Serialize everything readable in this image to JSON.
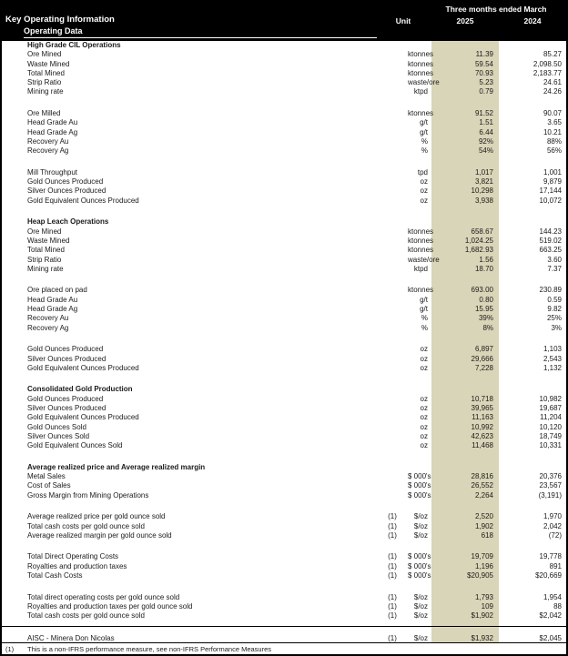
{
  "header": {
    "title": "Key Operating Information",
    "subtitle": "Operating Data",
    "period_label": "Three months ended March",
    "unit_label": "Unit",
    "col_2025": "2025",
    "col_2024": "2024"
  },
  "colors": {
    "header_bg": "#000000",
    "header_text": "#ffffff",
    "highlight_column_bg": "#d9d5b8",
    "body_text": "#1a1a1a"
  },
  "sections": [
    {
      "title": "High Grade CIL Operations",
      "groups": [
        {
          "rows": [
            {
              "label": "Ore Mined",
              "unit": "ktonnes",
              "y2025": "11.39",
              "y2024": "85.27"
            },
            {
              "label": "Waste Mined",
              "unit": "ktonnes",
              "y2025": "59.54",
              "y2024": "2,098.50"
            },
            {
              "label": "Total Mined",
              "unit": "ktonnes",
              "y2025": "70.93",
              "y2024": "2,183.77"
            },
            {
              "label": "Strip Ratio",
              "unit": "waste/ore",
              "y2025": "5.23",
              "y2024": "24.61"
            },
            {
              "label": "Mining rate",
              "unit": "ktpd",
              "y2025": "0.79",
              "y2024": "24.26"
            }
          ]
        },
        {
          "rows": [
            {
              "label": "Ore Milled",
              "unit": "ktonnes",
              "y2025": "91.52",
              "y2024": "90.07"
            },
            {
              "label": "Head Grade Au",
              "unit": "g/t",
              "y2025": "1.51",
              "y2024": "3.65"
            },
            {
              "label": "Head Grade Ag",
              "unit": "g/t",
              "y2025": "6.44",
              "y2024": "10.21"
            },
            {
              "label": "Recovery Au",
              "unit": "%",
              "y2025": "92%",
              "y2024": "88%"
            },
            {
              "label": "Recovery Ag",
              "unit": "%",
              "y2025": "54%",
              "y2024": "56%"
            }
          ]
        },
        {
          "rows": [
            {
              "label": "Mill Throughput",
              "unit": "tpd",
              "y2025": "1,017",
              "y2024": "1,001"
            },
            {
              "label": "Gold Ounces Produced",
              "unit": "oz",
              "y2025": "3,821",
              "y2024": "9,879"
            },
            {
              "label": "Silver Ounces Produced",
              "unit": "oz",
              "y2025": "10,298",
              "y2024": "17,144"
            },
            {
              "label": "Gold Equivalent Ounces Produced",
              "unit": "oz",
              "y2025": "3,938",
              "y2024": "10,072"
            }
          ]
        }
      ]
    },
    {
      "title": "Heap Leach Operations",
      "groups": [
        {
          "rows": [
            {
              "label": "Ore Mined",
              "unit": "ktonnes",
              "y2025": "658.67",
              "y2024": "144.23"
            },
            {
              "label": "Waste Mined",
              "unit": "ktonnes",
              "y2025": "1,024.25",
              "y2024": "519.02"
            },
            {
              "label": "Total Mined",
              "unit": "ktonnes",
              "y2025": "1,682.93",
              "y2024": "663.25"
            },
            {
              "label": "Strip Ratio",
              "unit": "waste/ore",
              "y2025": "1.56",
              "y2024": "3.60"
            },
            {
              "label": "Mining rate",
              "unit": "ktpd",
              "y2025": "18.70",
              "y2024": "7.37"
            }
          ]
        },
        {
          "rows": [
            {
              "label": "Ore placed on pad",
              "unit": "ktonnes",
              "y2025": "693.00",
              "y2024": "230.89"
            },
            {
              "label": "Head Grade Au",
              "unit": "g/t",
              "y2025": "0.80",
              "y2024": "0.59"
            },
            {
              "label": "Head Grade Ag",
              "unit": "g/t",
              "y2025": "15.95",
              "y2024": "9.82"
            },
            {
              "label": "Recovery Au",
              "unit": "%",
              "y2025": "39%",
              "y2024": "25%"
            },
            {
              "label": "Recovery Ag",
              "unit": "%",
              "y2025": "8%",
              "y2024": "3%"
            }
          ]
        },
        {
          "rows": [
            {
              "label": "Gold Ounces Produced",
              "unit": "oz",
              "y2025": "6,897",
              "y2024": "1,103"
            },
            {
              "label": "Silver Ounces Produced",
              "unit": "oz",
              "y2025": "29,666",
              "y2024": "2,543"
            },
            {
              "label": "Gold Equivalent Ounces Produced",
              "unit": "oz",
              "y2025": "7,228",
              "y2024": "1,132"
            }
          ]
        }
      ]
    },
    {
      "title": "Consolidated Gold Production",
      "groups": [
        {
          "rows": [
            {
              "label": "Gold Ounces Produced",
              "unit": "oz",
              "y2025": "10,718",
              "y2024": "10,982"
            },
            {
              "label": "Silver Ounces Produced",
              "unit": "oz",
              "y2025": "39,965",
              "y2024": "19,687"
            },
            {
              "label": "Gold Equivalent Ounces Produced",
              "unit": "oz",
              "y2025": "11,163",
              "y2024": "11,204"
            },
            {
              "label": "Gold Ounces Sold",
              "unit": "oz",
              "y2025": "10,992",
              "y2024": "10,120"
            },
            {
              "label": "Silver Ounces Sold",
              "unit": "oz",
              "y2025": "42,623",
              "y2024": "18,749"
            },
            {
              "label": "Gold Equivalent Ounces Sold",
              "unit": "oz",
              "y2025": "11,468",
              "y2024": "10,331"
            }
          ]
        }
      ]
    },
    {
      "title": "Average realized price and Average realized margin",
      "groups": [
        {
          "rows": [
            {
              "label": "Metal Sales",
              "unit": "$ 000's",
              "y2025": "28,816",
              "y2024": "20,376"
            },
            {
              "label": "Cost of Sales",
              "unit": "$ 000's",
              "y2025": "26,552",
              "y2024": "23,567"
            },
            {
              "label": "Gross Margin from Mining Operations",
              "unit": "$ 000's",
              "y2025": "2,264",
              "y2024": "(3,191)"
            }
          ]
        },
        {
          "rows": [
            {
              "label": "Average realized price per gold ounce sold",
              "note": "(1)",
              "unit": "$/oz",
              "y2025": "2,520",
              "y2024": "1,970"
            },
            {
              "label": "Total cash costs per gold ounce sold",
              "note": "(1)",
              "unit": "$/oz",
              "y2025": "1,902",
              "y2024": "2,042"
            },
            {
              "label": "Average realized margin per gold ounce sold",
              "note": "(1)",
              "unit": "$/oz",
              "y2025": "618",
              "y2024": "(72)"
            }
          ]
        },
        {
          "rows": [
            {
              "label": "Total Direct Operating Costs",
              "note": "(1)",
              "unit": "$ 000's",
              "y2025": "19,709",
              "y2024": "19,778"
            },
            {
              "label": "Royalties and production taxes",
              "note": "(1)",
              "unit": "$ 000's",
              "y2025": "1,196",
              "y2024": "891"
            },
            {
              "label": "Total Cash Costs",
              "note": "(1)",
              "unit": "$ 000's",
              "y2025": "$20,905",
              "y2024": "$20,669"
            }
          ]
        },
        {
          "rows": [
            {
              "label": "Total direct operating costs per gold ounce sold",
              "note": "(1)",
              "unit": "$/oz",
              "y2025": "1,793",
              "y2024": "1,954"
            },
            {
              "label": "Royalties and production taxes per gold ounce sold",
              "note": "(1)",
              "unit": "$/oz",
              "y2025": "109",
              "y2024": "88"
            },
            {
              "label": "Total cash costs per gold ounce sold",
              "note": "(1)",
              "unit": "$/oz",
              "y2025": "$1,902",
              "y2024": "$2,042"
            }
          ]
        },
        {
          "rule_top": true,
          "rows": [
            {
              "label": "AISC - Minera Don Nicolas",
              "note": "(1)",
              "unit": "$/oz",
              "y2025": "$1,932",
              "y2024": "$2,045"
            }
          ]
        }
      ]
    }
  ],
  "footnote": {
    "marker": "(1)",
    "text": "This is a non-IFRS performance measure, see non-IFRS Performance Measures"
  }
}
